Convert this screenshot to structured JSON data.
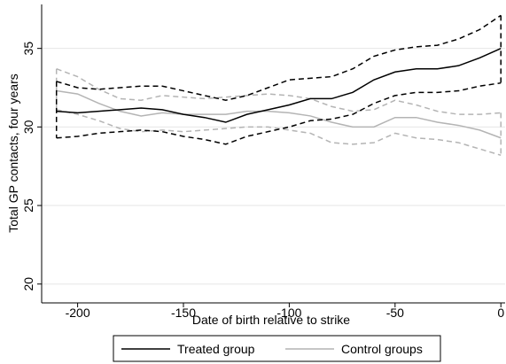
{
  "chart_data": {
    "type": "line",
    "x_label": "Date of birth relative to strike",
    "y_label": "Total GP contacts, four years",
    "x": [
      -210,
      -200,
      -190,
      -180,
      -170,
      -160,
      -150,
      -140,
      -130,
      -120,
      -110,
      -100,
      -90,
      -80,
      -70,
      -60,
      -50,
      -40,
      -30,
      -20,
      -10,
      0
    ],
    "series": [
      {
        "name": "Treated group",
        "color": "#000000",
        "values": [
          31.0,
          30.9,
          31.0,
          31.1,
          31.2,
          31.1,
          30.8,
          30.6,
          30.3,
          30.8,
          31.1,
          31.4,
          31.8,
          31.8,
          32.2,
          33.0,
          33.5,
          33.7,
          33.7,
          33.9,
          34.4,
          35.0
        ],
        "upper": [
          32.9,
          32.5,
          32.4,
          32.5,
          32.6,
          32.6,
          32.3,
          32.0,
          31.7,
          32.0,
          32.5,
          33.0,
          33.1,
          33.2,
          33.7,
          34.5,
          34.9,
          35.1,
          35.2,
          35.6,
          36.2,
          37.1
        ],
        "lower": [
          29.3,
          29.4,
          29.6,
          29.7,
          29.8,
          29.7,
          29.4,
          29.2,
          28.9,
          29.4,
          29.7,
          30.0,
          30.4,
          30.5,
          30.8,
          31.5,
          32.0,
          32.2,
          32.2,
          32.3,
          32.6,
          32.8
        ]
      },
      {
        "name": "Control groups",
        "color": "#b4b4b4",
        "values": [
          32.3,
          32.1,
          31.5,
          31.0,
          30.7,
          30.9,
          30.8,
          30.8,
          30.8,
          31.0,
          31.0,
          30.9,
          30.7,
          30.3,
          30.0,
          30.0,
          30.6,
          30.6,
          30.3,
          30.1,
          29.8,
          29.3
        ],
        "upper": [
          33.7,
          33.2,
          32.4,
          31.8,
          31.7,
          32.0,
          31.9,
          31.8,
          31.9,
          32.0,
          32.1,
          32.0,
          31.8,
          31.3,
          31.0,
          31.1,
          31.7,
          31.4,
          31.0,
          30.8,
          30.8,
          30.9
        ],
        "lower": [
          31.1,
          30.8,
          30.4,
          29.9,
          29.7,
          29.8,
          29.7,
          29.8,
          29.9,
          30.0,
          30.0,
          29.8,
          29.6,
          29.0,
          28.9,
          29.0,
          29.6,
          29.3,
          29.2,
          29.0,
          28.6,
          28.2
        ]
      }
    ],
    "band_style": "dashed",
    "xlim": [
      -217,
      2
    ],
    "ylim": [
      18.8,
      37.8
    ],
    "xticks": [
      -200,
      -150,
      -100,
      -50,
      0
    ],
    "yticks": [
      20,
      25,
      30,
      35
    ],
    "grid": true,
    "legend": "bottom"
  }
}
